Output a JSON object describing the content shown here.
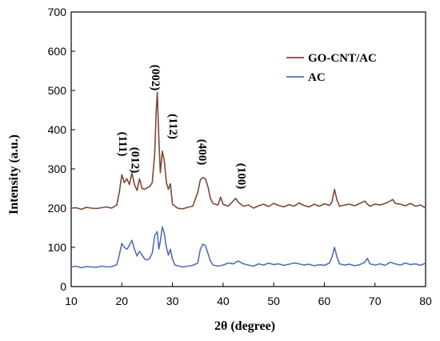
{
  "chart_data": {
    "type": "line",
    "title": "",
    "xlabel": "2θ (degree)",
    "ylabel": "Intensity (a.u.)",
    "xlim": [
      10,
      80
    ],
    "ylim": [
      0,
      700
    ],
    "xticks": [
      10,
      20,
      30,
      40,
      50,
      60,
      70,
      80
    ],
    "yticks": [
      0,
      100,
      200,
      300,
      400,
      500,
      600,
      700
    ],
    "grid": false,
    "legend_position": "top-right",
    "series": [
      {
        "name": "GO-CNT/AC",
        "color": "#7B4A33",
        "x": [
          10,
          11,
          12,
          13,
          14,
          15,
          16,
          17,
          18,
          19,
          19.5,
          20,
          20.5,
          21,
          21.5,
          22,
          22.5,
          23,
          23.5,
          24,
          24.5,
          25,
          25.5,
          26,
          26.5,
          26.8,
          27,
          27.3,
          27.6,
          28,
          28.4,
          28.8,
          29.2,
          29.6,
          30,
          30.5,
          31,
          32,
          33,
          34,
          35,
          35.5,
          36,
          36.5,
          37,
          37.5,
          38,
          39,
          39.5,
          40,
          41,
          42,
          42.5,
          43,
          44,
          45,
          46,
          47,
          48,
          49,
          50,
          51,
          52,
          53,
          54,
          55,
          56,
          57,
          58,
          59,
          60,
          61,
          61.5,
          62,
          62.5,
          63,
          64,
          65,
          66,
          67,
          68,
          68.5,
          69,
          70,
          71,
          72,
          73,
          73.5,
          74,
          75,
          76,
          77,
          78,
          79,
          80
        ],
        "values": [
          200,
          201,
          197,
          202,
          200,
          199,
          201,
          203,
          200,
          208,
          240,
          285,
          265,
          275,
          260,
          290,
          260,
          245,
          275,
          250,
          248,
          252,
          255,
          265,
          340,
          450,
          495,
          380,
          290,
          345,
          320,
          265,
          248,
          262,
          210,
          205,
          200,
          198,
          202,
          205,
          240,
          272,
          278,
          275,
          255,
          225,
          212,
          208,
          228,
          210,
          205,
          218,
          225,
          215,
          205,
          208,
          200,
          206,
          210,
          204,
          212,
          207,
          203,
          209,
          205,
          213,
          207,
          203,
          210,
          205,
          211,
          207,
          215,
          248,
          220,
          205,
          208,
          210,
          206,
          212,
          218,
          210,
          205,
          210,
          208,
          212,
          218,
          222,
          212,
          210,
          206,
          212,
          205,
          208,
          200
        ],
        "peaks": [
          {
            "label": "(111)",
            "x": 20.1
          },
          {
            "label": "(012)",
            "x": 22.6
          },
          {
            "label": "(002)",
            "x": 26.6
          },
          {
            "label": "(112)",
            "x": 28.2
          },
          {
            "label": "(400)",
            "x": 35.8
          },
          {
            "label": "(100)",
            "x": 42.3
          }
        ]
      },
      {
        "name": "AC",
        "color": "#4F6FB5",
        "x": [
          10,
          11,
          12,
          13,
          14,
          15,
          16,
          17,
          18,
          19,
          19.5,
          20,
          20.5,
          21,
          21.5,
          22,
          22.5,
          23,
          23.5,
          24,
          24.5,
          25,
          25.5,
          26,
          26.5,
          27,
          27.3,
          27.6,
          28,
          28.4,
          28.8,
          29.2,
          29.6,
          30,
          30.5,
          31,
          32,
          33,
          34,
          35,
          35.5,
          36,
          36.5,
          37,
          37.5,
          38,
          39,
          40,
          41,
          42,
          43,
          44,
          45,
          46,
          47,
          48,
          49,
          50,
          51,
          52,
          53,
          54,
          55,
          56,
          57,
          58,
          59,
          60,
          61,
          61.5,
          62,
          62.5,
          63,
          64,
          65,
          66,
          67,
          68,
          68.5,
          69,
          70,
          71,
          72,
          73,
          74,
          75,
          76,
          77,
          78,
          79,
          80
        ],
        "values": [
          50,
          52,
          48,
          51,
          50,
          49,
          52,
          50,
          51,
          56,
          80,
          110,
          100,
          95,
          105,
          118,
          95,
          78,
          90,
          80,
          70,
          68,
          72,
          85,
          130,
          140,
          95,
          115,
          152,
          135,
          100,
          80,
          95,
          70,
          55,
          53,
          50,
          52,
          54,
          60,
          95,
          108,
          105,
          85,
          65,
          55,
          52,
          55,
          60,
          58,
          65,
          58,
          55,
          52,
          58,
          55,
          60,
          56,
          58,
          54,
          57,
          60,
          58,
          55,
          57,
          53,
          56,
          54,
          60,
          75,
          100,
          75,
          58,
          55,
          57,
          53,
          56,
          62,
          72,
          58,
          55,
          58,
          54,
          62,
          58,
          55,
          60,
          56,
          58,
          54,
          60
        ]
      }
    ]
  }
}
